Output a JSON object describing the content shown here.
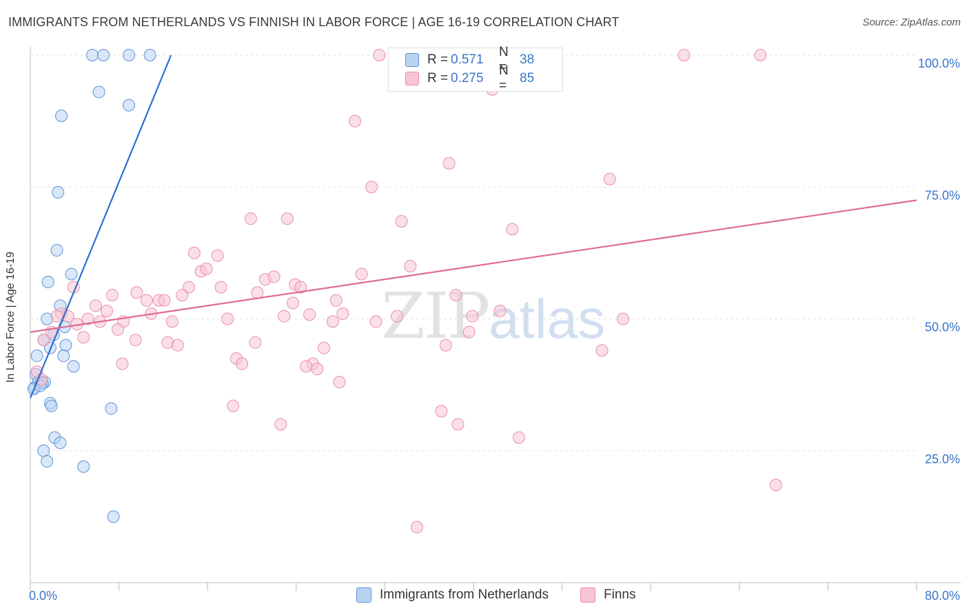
{
  "title": "IMMIGRANTS FROM NETHERLANDS VS FINNISH IN LABOR FORCE | AGE 16-19 CORRELATION CHART",
  "source": "Source: ZipAtlas.com",
  "watermark": {
    "zip": "ZIP",
    "atlas": "atlas"
  },
  "colors": {
    "blue_fill": "#b9d3f2",
    "blue_stroke": "#5f92d6",
    "blue_line": "#2a6fd0",
    "pink_fill": "#f7c4d4",
    "pink_stroke": "#e88fac",
    "pink_line": "#e06a94",
    "tick_label": "#3a74c9",
    "grid": "#e3e3e3"
  },
  "legend": [
    {
      "name": "Immigrants from Netherlands",
      "r_label": "R =",
      "r_value": "0.571",
      "n_label": "N =",
      "n_value": "38"
    },
    {
      "name": "Finns",
      "r_label": "R =",
      "r_value": "0.275",
      "n_label": "N =",
      "n_value": "85"
    }
  ],
  "chart_data": {
    "type": "scatter",
    "title": "IMMIGRANTS FROM NETHERLANDS VS FINNISH IN LABOR FORCE | AGE 16-19 CORRELATION CHART",
    "xlabel": "",
    "ylabel": "In Labor Force | Age 16-19",
    "xlim": [
      0,
      80
    ],
    "ylim": [
      0,
      100
    ],
    "x_tick_labels": [
      "0.0%",
      "80.0%"
    ],
    "y_ticks": [
      {
        "value": 25,
        "label": "25.0%"
      },
      {
        "value": 50,
        "label": "50.0%"
      },
      {
        "value": 75,
        "label": "75.0%"
      },
      {
        "value": 100,
        "label": "100.0%"
      }
    ],
    "grid": true,
    "series": [
      {
        "name": "Immigrants from Netherlands",
        "color": "blue",
        "trendline": {
          "x": [
            0,
            12.7
          ],
          "y": [
            35,
            100
          ]
        },
        "points": [
          [
            5.6,
            100
          ],
          [
            6.6,
            100
          ],
          [
            8.9,
            100
          ],
          [
            10.8,
            100
          ],
          [
            6.2,
            93
          ],
          [
            8.9,
            90.5
          ],
          [
            2.8,
            88.5
          ],
          [
            2.5,
            74
          ],
          [
            2.4,
            63
          ],
          [
            1.6,
            57
          ],
          [
            3.7,
            58.5
          ],
          [
            2.7,
            52.5
          ],
          [
            1.5,
            50
          ],
          [
            1.2,
            46
          ],
          [
            2.1,
            47
          ],
          [
            3.1,
            48.5
          ],
          [
            3.2,
            45
          ],
          [
            1.8,
            44.5
          ],
          [
            3.0,
            43
          ],
          [
            0.6,
            43
          ],
          [
            3.9,
            41
          ],
          [
            0.5,
            39.5
          ],
          [
            0.7,
            38
          ],
          [
            1.0,
            38
          ],
          [
            1.3,
            38
          ],
          [
            0.4,
            37
          ],
          [
            0.3,
            36.7
          ],
          [
            1.8,
            34
          ],
          [
            1.9,
            33.5
          ],
          [
            7.3,
            33
          ],
          [
            2.2,
            27.5
          ],
          [
            2.7,
            26.5
          ],
          [
            1.2,
            25
          ],
          [
            1.5,
            23
          ],
          [
            4.8,
            22
          ],
          [
            7.5,
            12.5
          ],
          [
            1.1,
            37.8
          ],
          [
            0.9,
            37.3
          ]
        ]
      },
      {
        "name": "Finns",
        "color": "pink",
        "trendline": {
          "x": [
            0,
            80
          ],
          "y": [
            47.5,
            72.5
          ]
        },
        "points": [
          [
            31.5,
            100
          ],
          [
            35.5,
            100
          ],
          [
            59,
            100
          ],
          [
            65.9,
            100
          ],
          [
            41.7,
            93.5
          ],
          [
            29.3,
            87.5
          ],
          [
            37.8,
            79.5
          ],
          [
            30.8,
            75
          ],
          [
            52.3,
            76.5
          ],
          [
            19.9,
            69
          ],
          [
            23.2,
            69
          ],
          [
            33.5,
            68.5
          ],
          [
            43.5,
            67
          ],
          [
            14.8,
            62.5
          ],
          [
            16.9,
            62
          ],
          [
            34.3,
            60
          ],
          [
            15.4,
            59
          ],
          [
            15.9,
            59.5
          ],
          [
            21.2,
            57.5
          ],
          [
            3.9,
            56
          ],
          [
            14.3,
            56
          ],
          [
            17.2,
            56
          ],
          [
            23.9,
            56.5
          ],
          [
            24.4,
            56
          ],
          [
            7.4,
            54.5
          ],
          [
            9.6,
            55
          ],
          [
            13.7,
            54.5
          ],
          [
            20.5,
            55
          ],
          [
            29.9,
            58.5
          ],
          [
            38.4,
            54.5
          ],
          [
            5.9,
            52.5
          ],
          [
            10.5,
            53.5
          ],
          [
            11.6,
            53.5
          ],
          [
            12.1,
            53.5
          ],
          [
            23.7,
            53
          ],
          [
            27.6,
            53.5
          ],
          [
            6.9,
            51.5
          ],
          [
            10.9,
            51
          ],
          [
            42.4,
            51.5
          ],
          [
            2.8,
            51
          ],
          [
            3.4,
            50.5
          ],
          [
            5.2,
            50
          ],
          [
            8.4,
            49.5
          ],
          [
            6.3,
            49.5
          ],
          [
            12.8,
            49.5
          ],
          [
            17.8,
            50
          ],
          [
            22.9,
            50.5
          ],
          [
            28.2,
            51
          ],
          [
            33.1,
            50.5
          ],
          [
            4.2,
            49
          ],
          [
            7.9,
            48
          ],
          [
            27.3,
            49.5
          ],
          [
            31.2,
            49.5
          ],
          [
            39.6,
            47.5
          ],
          [
            4.8,
            46.5
          ],
          [
            1.2,
            46
          ],
          [
            9.5,
            46
          ],
          [
            12.4,
            45.5
          ],
          [
            13.3,
            45
          ],
          [
            20.3,
            45.5
          ],
          [
            26.5,
            44.5
          ],
          [
            37.5,
            45
          ],
          [
            51.6,
            44
          ],
          [
            1.9,
            47.5
          ],
          [
            0.6,
            40
          ],
          [
            1.0,
            38.5
          ],
          [
            18.6,
            42.5
          ],
          [
            8.3,
            41.5
          ],
          [
            19.1,
            41.5
          ],
          [
            25.5,
            41.5
          ],
          [
            24.9,
            41
          ],
          [
            25.9,
            40.5
          ],
          [
            27.9,
            38
          ],
          [
            18.3,
            33.5
          ],
          [
            37.1,
            32.5
          ],
          [
            22.6,
            30
          ],
          [
            38.6,
            30
          ],
          [
            44.1,
            27.5
          ],
          [
            67.3,
            18.5
          ],
          [
            34.9,
            10.5
          ],
          [
            39.9,
            50.5
          ],
          [
            53.5,
            50
          ],
          [
            2.4,
            50.5
          ],
          [
            22,
            58
          ],
          [
            25.2,
            50.8
          ]
        ]
      }
    ]
  }
}
